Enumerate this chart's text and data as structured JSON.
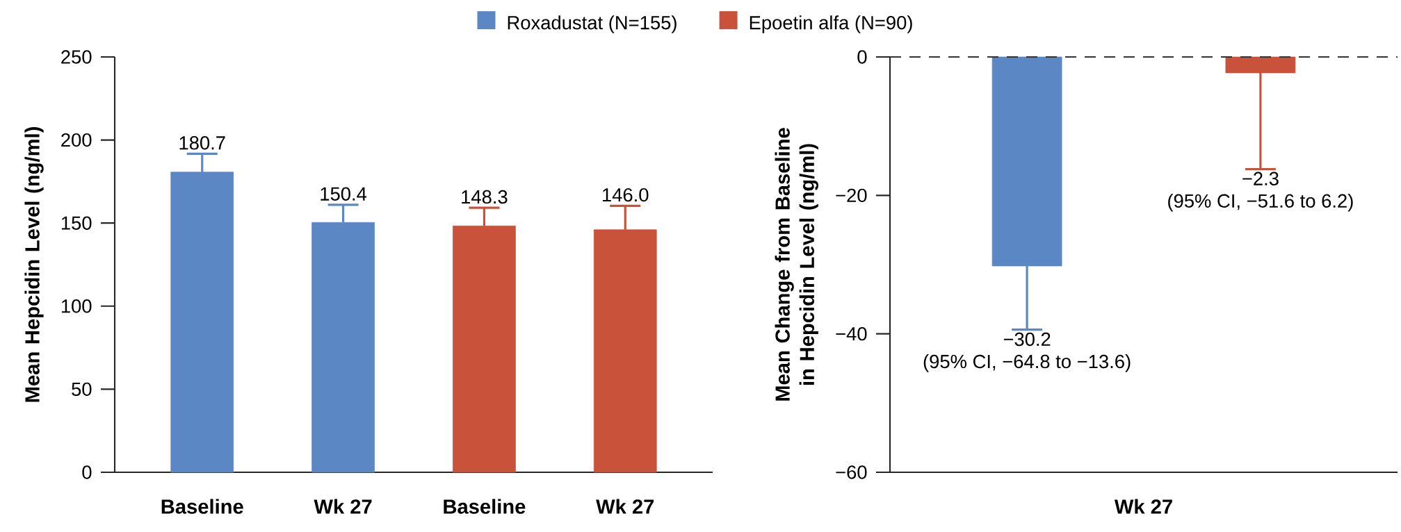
{
  "chart_data": [
    {
      "type": "bar",
      "ylabel": "Mean Hepcidin Level (ng/ml)",
      "categories": [
        "Baseline",
        "Wk 27",
        "Baseline",
        "Wk 27"
      ],
      "series": [
        {
          "name": "Roxadustat (N=155)",
          "color": "#5b87c4",
          "values": [
            180.7,
            150.4,
            null,
            null
          ],
          "errors": [
            [
              180.7,
              191.7
            ],
            [
              150.4,
              161.0
            ],
            null,
            null
          ],
          "value_labels": [
            "180.7",
            "150.4",
            null,
            null
          ]
        },
        {
          "name": "Epoetin alfa (N=90)",
          "color": "#c8523a",
          "values": [
            null,
            null,
            148.3,
            146.0
          ],
          "errors": [
            null,
            null,
            [
              148.3,
              159.2
            ],
            [
              146.0,
              160.4
            ]
          ],
          "value_labels": [
            null,
            null,
            "148.3",
            "146.0"
          ]
        }
      ],
      "ylim": [
        0,
        250
      ],
      "yticks": [
        0,
        50,
        100,
        150,
        200,
        250
      ],
      "legend": "top"
    },
    {
      "type": "bar",
      "ylabel": "Mean Change from Baseline in Hepcidin Level (ng/ml)",
      "categories": [
        "Wk 27"
      ],
      "series": [
        {
          "color": "#5b87c4",
          "values": [
            -30.2
          ],
          "errors": [
            [
              -39.4,
              -30.2
            ]
          ]
        },
        {
          "color": "#c8523a",
          "values": [
            -2.3
          ],
          "errors": [
            [
              -16.2,
              -2.3
            ]
          ]
        }
      ],
      "ylim": [
        -60,
        0
      ],
      "yticks": [
        {
          "value": -60,
          "label": "−60"
        },
        {
          "value": -40,
          "label": "−40"
        },
        {
          "value": -20,
          "label": "−20"
        },
        0
      ],
      "ref_lines": [
        {
          "axis": "y",
          "value": 0,
          "line_style": "dashed",
          "color": "#333333"
        }
      ],
      "annotations": [
        "−30.2",
        "(95% CI, −64.8 to −13.6)",
        "−2.3",
        "(95% CI, −51.6 to 6.2)"
      ]
    }
  ]
}
